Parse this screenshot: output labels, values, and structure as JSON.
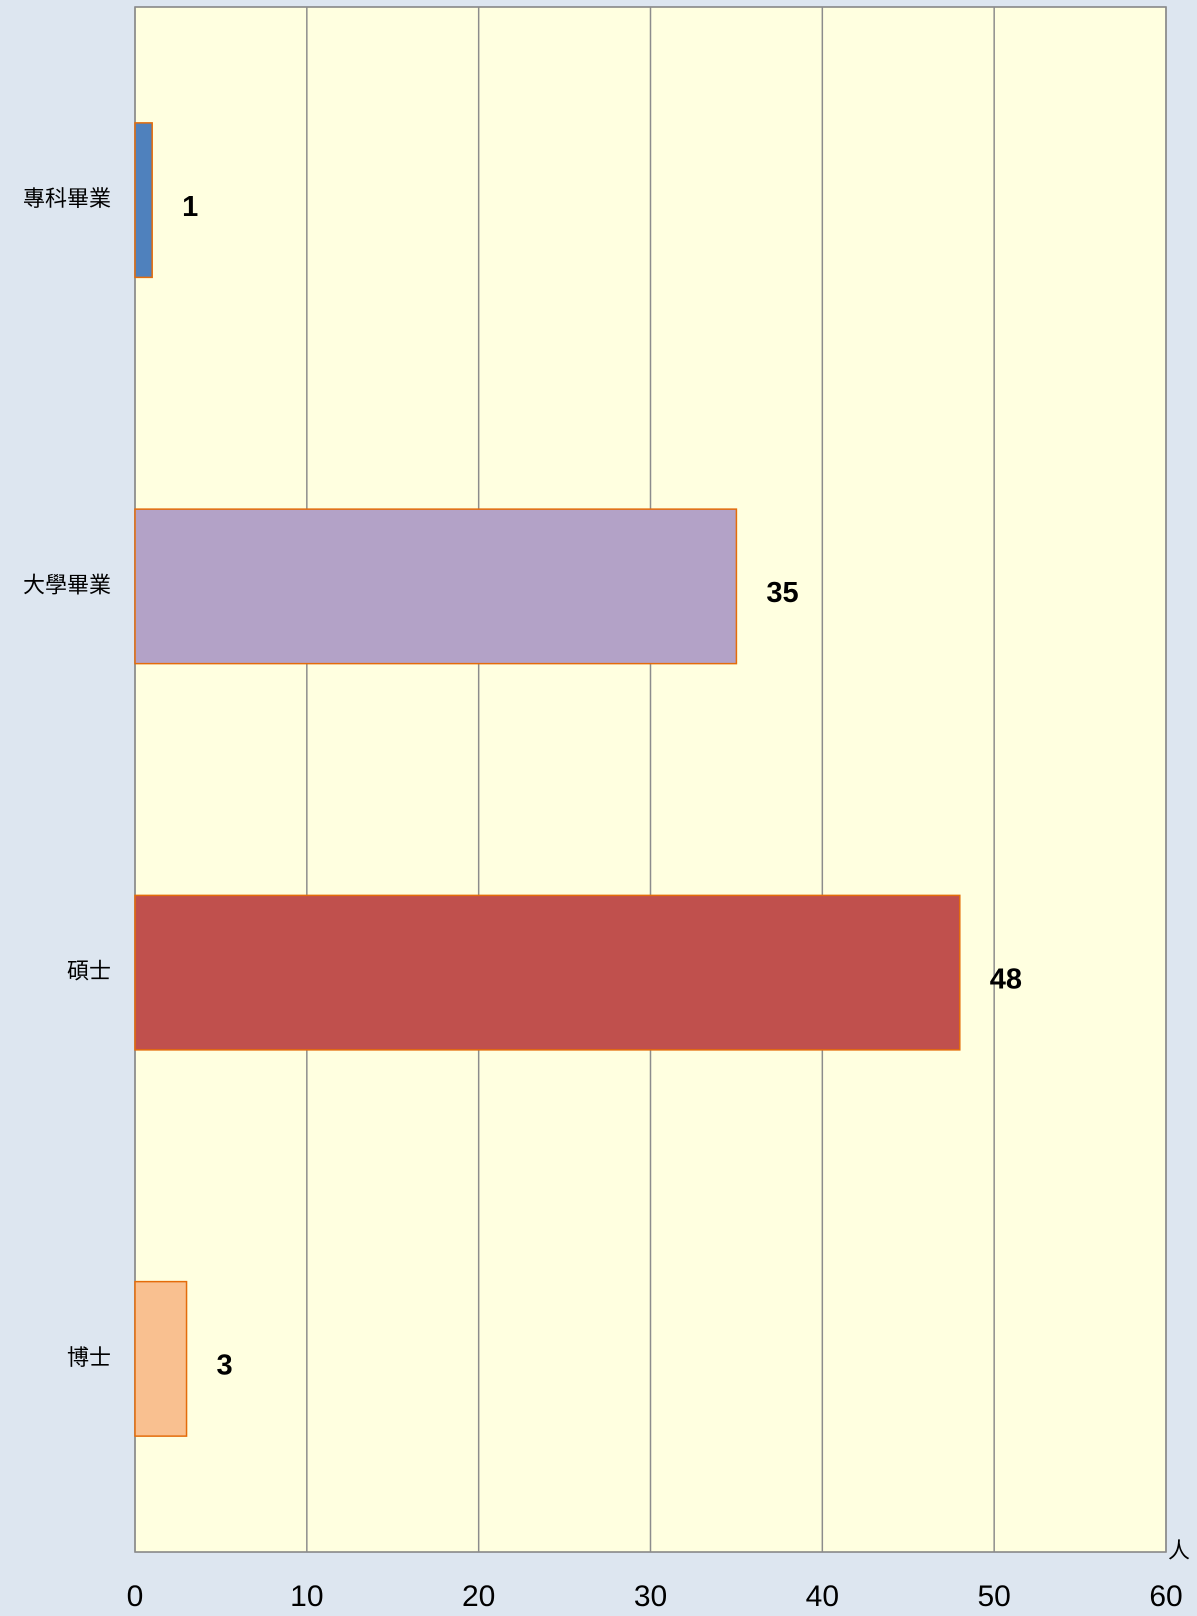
{
  "chart_data": {
    "type": "bar",
    "orientation": "horizontal",
    "categories": [
      "專科畢業",
      "大學畢業",
      "碩士",
      "博士"
    ],
    "values": [
      1,
      35,
      48,
      3
    ],
    "colors": [
      "#4f81bd",
      "#b3a2c7",
      "#c0504d",
      "#f9c090"
    ],
    "bar_edge_color": "#e46c0a",
    "x_label": "人",
    "xlim": [
      0,
      60
    ],
    "xticks": [
      0,
      10,
      20,
      30,
      40,
      50,
      60
    ],
    "grid": true
  }
}
